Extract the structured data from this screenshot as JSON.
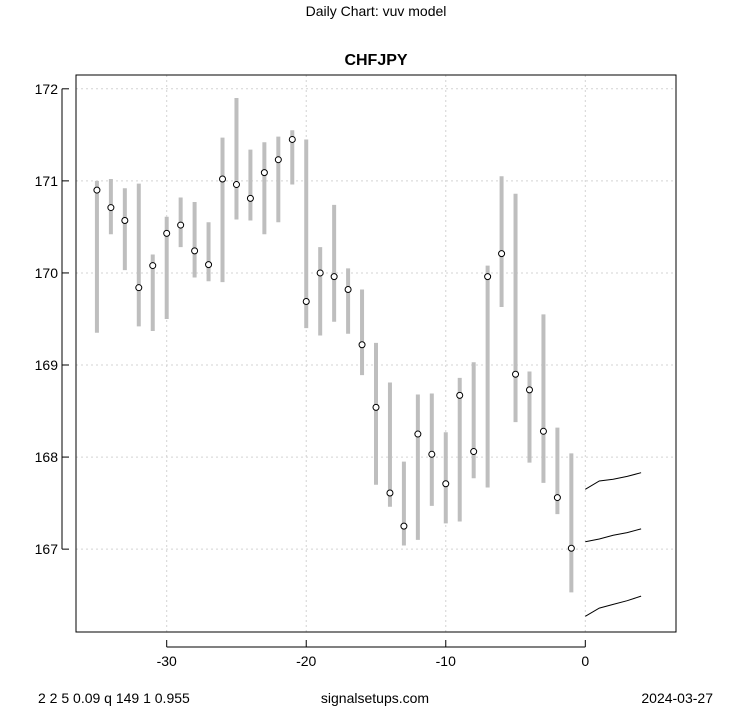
{
  "header": {
    "suptitle": "Daily Chart: vuv model"
  },
  "footer": {
    "params": "2 2 5 0.09 q 149 1 0.955",
    "site": "signalsetups.com",
    "date": "2024-03-27"
  },
  "colors": {
    "range_bar": "#bebebe",
    "point_fill": "#ffffff",
    "point_stroke": "#000000",
    "forecast_line": "#000000",
    "grid": "#d3d3d3",
    "axis": "#000000"
  },
  "chart_data": {
    "type": "line",
    "title": "CHFJPY",
    "xlabel": "",
    "ylabel": "",
    "xlim": [
      -36.5,
      6.5
    ],
    "ylim": [
      166.1,
      172.15
    ],
    "grid": true,
    "legend": "none",
    "x_ticks": [
      -30,
      -20,
      -10,
      0
    ],
    "x_tick_labels": [
      "-30",
      "-20",
      "-10",
      "0"
    ],
    "y_ticks": [
      167,
      168,
      169,
      170,
      171,
      172
    ],
    "y_tick_labels": [
      "167",
      "168",
      "169",
      "170",
      "171",
      "172"
    ],
    "series": [
      {
        "kind": "range_bars",
        "x": [
          -35,
          -34,
          -33,
          -32,
          -31,
          -30,
          -29,
          -28,
          -27,
          -26,
          -25,
          -24,
          -23,
          -22,
          -21,
          -20,
          -19,
          -18,
          -17,
          -16,
          -15,
          -14,
          -13,
          -12,
          -11,
          -10,
          -9,
          -8,
          -7,
          -6,
          -5,
          -4,
          -3,
          -2,
          -1
        ],
        "low": [
          169.35,
          170.42,
          170.03,
          169.42,
          169.37,
          169.5,
          170.28,
          169.95,
          169.91,
          169.9,
          170.58,
          170.57,
          170.42,
          170.55,
          170.96,
          169.4,
          169.32,
          169.47,
          169.34,
          168.89,
          167.7,
          167.46,
          167.04,
          167.1,
          167.47,
          167.28,
          167.3,
          167.77,
          167.67,
          169.63,
          168.38,
          167.94,
          167.72,
          167.38,
          166.53
        ],
        "high": [
          171.0,
          171.02,
          170.92,
          170.97,
          170.2,
          170.61,
          170.82,
          170.77,
          170.55,
          171.47,
          171.9,
          171.34,
          171.42,
          171.48,
          171.55,
          171.45,
          170.28,
          170.74,
          170.05,
          169.82,
          169.24,
          168.81,
          167.95,
          168.68,
          168.69,
          168.27,
          168.86,
          169.03,
          170.08,
          171.05,
          170.86,
          168.93,
          169.55,
          168.32,
          168.04
        ],
        "point": [
          170.9,
          170.71,
          170.57,
          169.84,
          170.08,
          170.43,
          170.52,
          170.24,
          170.09,
          171.02,
          170.96,
          170.81,
          171.09,
          171.23,
          171.45,
          169.69,
          170.0,
          169.96,
          169.82,
          169.22,
          168.54,
          167.61,
          167.25,
          168.25,
          168.03,
          167.71,
          168.67,
          168.06,
          169.96,
          170.21,
          168.9,
          168.73,
          168.28,
          167.56,
          167.01
        ]
      },
      {
        "kind": "forecast_line",
        "name": "",
        "x": [
          0,
          1,
          2,
          3,
          4
        ],
        "values": [
          167.65,
          167.74,
          167.76,
          167.79,
          167.83
        ]
      },
      {
        "kind": "forecast_line",
        "name": "",
        "x": [
          0,
          1,
          2,
          3,
          4
        ],
        "values": [
          167.08,
          167.11,
          167.15,
          167.18,
          167.22
        ]
      },
      {
        "kind": "forecast_line",
        "name": "",
        "x": [
          0,
          1,
          2,
          3,
          4
        ],
        "values": [
          166.27,
          166.36,
          166.4,
          166.44,
          166.49
        ]
      }
    ]
  }
}
